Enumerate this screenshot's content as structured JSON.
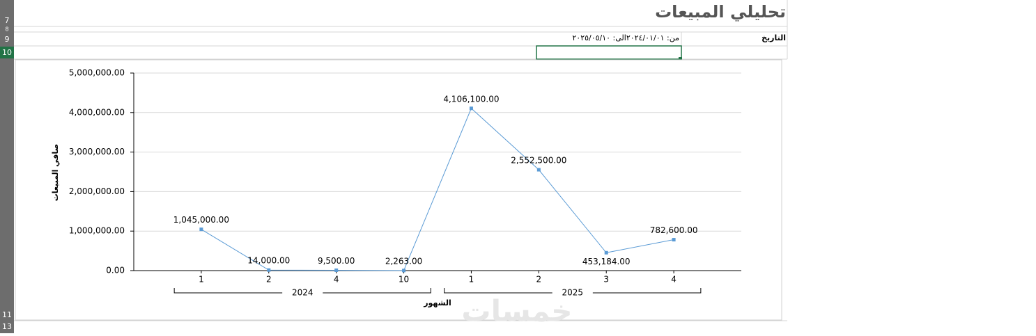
{
  "sheet": {
    "title": "تحليلي  المبيعات",
    "date_label": "التاريخ",
    "date_value": "من: ٢٠٢٤/٠١/٠١الى: ٢٠٢٥/٠٥/١٠",
    "row_numbers": [
      "7",
      "8",
      "9",
      "10",
      "11",
      "13"
    ],
    "watermark": "خمسات"
  },
  "chart_data": {
    "type": "line",
    "y_label": "صافي المبيعات",
    "x_label": "الشهور",
    "groups": [
      {
        "name": "2024",
        "categories": [
          "1",
          "2",
          "4",
          "10"
        ]
      },
      {
        "name": "2025",
        "categories": [
          "1",
          "2",
          "3",
          "4"
        ]
      }
    ],
    "series": [
      {
        "name": "صافي المبيعات",
        "color": "#5b9bd5",
        "values": [
          1045000,
          14000,
          9500,
          2263,
          4106100,
          2552500,
          453184,
          782600
        ],
        "value_labels": [
          "1,045,000.00",
          "14,000.00",
          "9,500.00",
          "2,263.00",
          "4,106,100.00",
          "2,552,500.00",
          "453,184.00",
          "782,600.00"
        ]
      }
    ],
    "ylim": [
      0,
      5000000
    ],
    "yticks": [
      {
        "value": 0,
        "label": "0.00"
      },
      {
        "value": 1000000,
        "label": "1,000,000.00"
      },
      {
        "value": 2000000,
        "label": "2,000,000.00"
      },
      {
        "value": 3000000,
        "label": "3,000,000.00"
      },
      {
        "value": 4000000,
        "label": "4,000,000.00"
      },
      {
        "value": 5000000,
        "label": "5,000,000.00"
      }
    ],
    "grid": true
  }
}
